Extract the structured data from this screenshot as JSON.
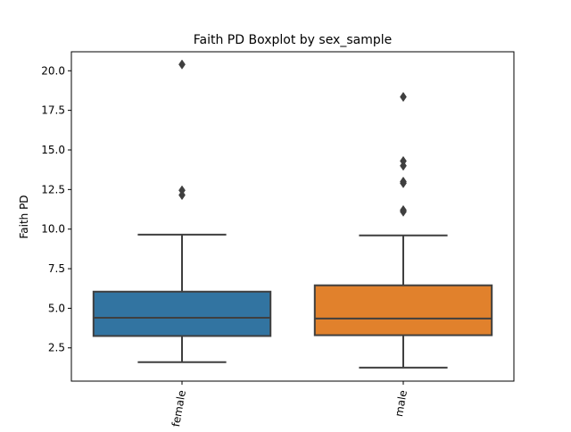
{
  "chart_data": {
    "type": "boxplot",
    "title": "Faith PD Boxplot by sex_sample",
    "xlabel": "",
    "ylabel": "Faith PD",
    "ylim": [
      0.4,
      21.2
    ],
    "yticks": [
      2.5,
      5.0,
      7.5,
      10.0,
      12.5,
      15.0,
      17.5,
      20.0
    ],
    "ytick_labels": [
      "2.5",
      "5.0",
      "7.5",
      "10.0",
      "12.5",
      "15.0",
      "17.5",
      "20.0"
    ],
    "categories": [
      "female",
      "male"
    ],
    "x_tick_labels": [
      "female",
      "male"
    ],
    "grid": false,
    "boxes": [
      {
        "category": "female",
        "color": "#3274a1",
        "whisker_low": 1.6,
        "q1": 3.25,
        "median": 4.4,
        "q3": 6.05,
        "whisker_high": 9.65,
        "outliers": [
          12.15,
          12.45,
          20.4
        ]
      },
      {
        "category": "male",
        "color": "#e1812c",
        "whisker_low": 1.25,
        "q1": 3.3,
        "median": 4.35,
        "q3": 6.45,
        "whisker_high": 9.6,
        "outliers": [
          11.1,
          11.2,
          12.9,
          13.0,
          14.0,
          14.3,
          18.35
        ]
      }
    ]
  }
}
